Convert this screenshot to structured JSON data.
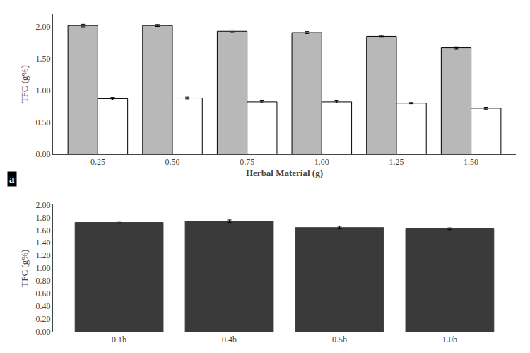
{
  "chart_data": [
    {
      "type": "bar",
      "categories": [
        "0.25",
        "0.50",
        "0.75",
        "1.00",
        "1.25",
        "1.50"
      ],
      "series": [
        {
          "color": "#b8b8b8",
          "values": [
            2.02,
            2.02,
            1.93,
            1.91,
            1.85,
            1.67
          ],
          "errors": [
            0.02,
            0.015,
            0.02,
            0.015,
            0.015,
            0.015
          ]
        },
        {
          "color": "#ffffff",
          "values": [
            0.87,
            0.88,
            0.82,
            0.82,
            0.8,
            0.72
          ],
          "errors": [
            0.02,
            0.015,
            0.015,
            0.015,
            0.01,
            0.015
          ]
        }
      ],
      "xlabel": "Herbal Material (g)",
      "ylabel": "TFC (g%)",
      "ylim": [
        0.0,
        2.2
      ],
      "yticks": [
        {
          "value": 0,
          "label": "0.00"
        },
        {
          "value": 0.5,
          "label": "0.50"
        },
        {
          "value": 1,
          "label": "1.00"
        },
        {
          "value": 1.5,
          "label": "1.50"
        },
        {
          "value": 2,
          "label": "2.00"
        }
      ],
      "annotations": [
        {
          "text": "a"
        }
      ],
      "grid": false
    },
    {
      "type": "bar",
      "categories": [
        "0.1b",
        "0.4b",
        "0.5b",
        "1.0b"
      ],
      "values": [
        1.72,
        1.74,
        1.64,
        1.62
      ],
      "errors": [
        0.02,
        0.02,
        0.02,
        0.015
      ],
      "color": "#3a3a3a",
      "ylabel": "TFC (g%)",
      "ylim": [
        0.0,
        2.0
      ],
      "yticks": [
        {
          "value": 0,
          "label": "0.00"
        },
        {
          "value": 0.2,
          "label": "0.20"
        },
        {
          "value": 0.4,
          "label": "0.40"
        },
        {
          "value": 0.6,
          "label": "0.60"
        },
        {
          "value": 0.8,
          "label": "0.80"
        },
        {
          "value": 1,
          "label": "1.00"
        },
        {
          "value": 1.2,
          "label": "1.20"
        },
        {
          "value": 1.4,
          "label": "1.40"
        },
        {
          "value": 1.6,
          "label": "1.60"
        },
        {
          "value": 1.8,
          "label": "1.80"
        },
        {
          "value": 2,
          "label": "2.00"
        }
      ],
      "grid": false
    }
  ]
}
